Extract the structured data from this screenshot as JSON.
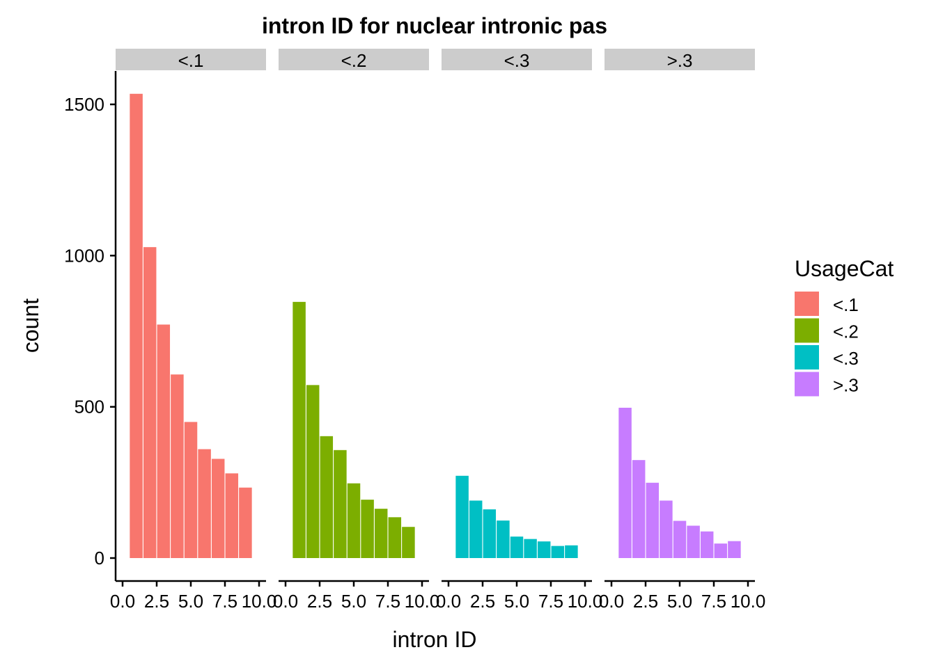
{
  "chart_data": {
    "type": "bar",
    "title": "intron ID for nuclear intronic pas",
    "xlabel": "intron ID",
    "ylabel": "count",
    "xlim": [
      0,
      10
    ],
    "ylim": [
      0,
      1600
    ],
    "x_ticks": [
      "0.0",
      "2.5",
      "5.0",
      "7.5",
      "10.0"
    ],
    "y_ticks": [
      0,
      500,
      1000,
      1500
    ],
    "x": [
      1,
      2,
      3,
      4,
      5,
      6,
      7,
      8,
      9
    ],
    "legend": {
      "title": "UsageCat",
      "position": "right"
    },
    "grid": false,
    "panels": [
      {
        "name": "<.1",
        "color": "#F8766D",
        "values": [
          1535,
          1028,
          772,
          607,
          450,
          360,
          328,
          280,
          233
        ]
      },
      {
        "name": "<.2",
        "color": "#7CAE00",
        "values": [
          847,
          572,
          403,
          357,
          247,
          193,
          163,
          135,
          103
        ]
      },
      {
        "name": "<.3",
        "color": "#00BFC4",
        "values": [
          272,
          190,
          161,
          124,
          71,
          63,
          55,
          40,
          42
        ]
      },
      {
        "name": ">.3",
        "color": "#C77CFF",
        "values": [
          497,
          324,
          249,
          190,
          123,
          107,
          88,
          48,
          56
        ]
      }
    ]
  },
  "colors": {
    "strip_background": "#CCCCCC",
    "axis": "#000000"
  }
}
